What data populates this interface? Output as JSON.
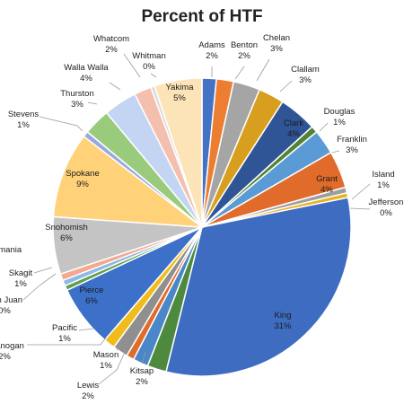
{
  "chart_data": {
    "type": "pie",
    "title": "Percent of HTF",
    "colors": {
      "blue": "#4472C4",
      "orange": "#ED7D31",
      "gray": "#A5A5A5",
      "gold": "#FFC000",
      "lightblue": "#5B9BD5",
      "green": "#70AD47",
      "darkblue": "#264478",
      "darkorange": "#9E480E",
      "darkgray": "#636363",
      "darkgold": "#997300",
      "steel": "#255E91",
      "darkgreen": "#43682B",
      "periwinkle": "#698ED0",
      "salmon": "#F1975A",
      "silver": "#B7B7B7",
      "yellow": "#FFCD33",
      "sky": "#7CAFDD",
      "lime": "#8CC168",
      "lavender": "#9DB5E0",
      "peach": "#F5BA8C",
      "beige": "#FDE9C9"
    },
    "slices": [
      {
        "name": "Adams",
        "label": "2%",
        "value": 1.5,
        "color": "#4472C4"
      },
      {
        "name": "Benton",
        "label": "2%",
        "value": 1.8,
        "color": "#ED7D31"
      },
      {
        "name": "Chelan",
        "label": "3%",
        "value": 2.8,
        "color": "#A5A5A5"
      },
      {
        "name": "Clallam",
        "label": "3%",
        "value": 2.7,
        "color": "#D89F1E"
      },
      {
        "name": "Clark",
        "label": "4%",
        "value": 4.0,
        "color": "#2F5597"
      },
      {
        "name": "Douglas",
        "label": "1%",
        "value": 0.7,
        "color": "#548235"
      },
      {
        "name": "Franklin",
        "label": "3%",
        "value": 2.6,
        "color": "#5B9BD5"
      },
      {
        "name": "Grant",
        "label": "4%",
        "value": 3.9,
        "color": "#E06B2A"
      },
      {
        "name": "Island",
        "label": "1%",
        "value": 0.6,
        "color": "#9E9E9E"
      },
      {
        "name": "Jefferson",
        "label": "0%",
        "value": 0.5,
        "color": "#E8B321"
      },
      {
        "name": "King",
        "label": "31%",
        "value": 31.0,
        "color": "#3E6CC0"
      },
      {
        "name": "Kitsap",
        "label": "2%",
        "value": 2.0,
        "color": "#4E8A3E"
      },
      {
        "name": "Lewis",
        "label": "2%",
        "value": 1.6,
        "color": "#4A86C8"
      },
      {
        "name": "Mason",
        "label": "1%",
        "value": 0.8,
        "color": "#E06B2A"
      },
      {
        "name": "Okanogan",
        "label": "2%",
        "value": 1.6,
        "color": "#8F8F8F"
      },
      {
        "name": "Pacific",
        "label": "1%",
        "value": 1.2,
        "color": "#F0BC1C"
      },
      {
        "name": "Pierce",
        "label": "6%",
        "value": 6.5,
        "color": "#3D70C8"
      },
      {
        "name": "San Juan",
        "label": "0%",
        "value": 0.5,
        "color": "#5EA04B"
      },
      {
        "name": "Skagit",
        "label": "1%",
        "value": 0.6,
        "color": "#8FB8E6"
      },
      {
        "name": "Skamania",
        "label": "",
        "value": 0.7,
        "color": "#F4A98E"
      },
      {
        "name": "Snohomish",
        "label": "6%",
        "value": 6.0,
        "color": "#C4C4C4"
      },
      {
        "name": "Spokane",
        "label": "9%",
        "value": 9.0,
        "color": "#FFD27A"
      },
      {
        "name": "Stevens",
        "label": "1%",
        "value": 0.6,
        "color": "#9AA8E0"
      },
      {
        "name": "Thurston",
        "label": "3%",
        "value": 2.8,
        "color": "#9ACB7D"
      },
      {
        "name": "Walla Walla",
        "label": "4%",
        "value": 3.5,
        "color": "#C3D5F2"
      },
      {
        "name": "Whatcom",
        "label": "2%",
        "value": 1.8,
        "color": "#F5BFB0"
      },
      {
        "name": "Whitman",
        "label": "0%",
        "value": 0.4,
        "color": "#DCDCDC"
      },
      {
        "name": "Yakima",
        "label": "5%",
        "value": 5.0,
        "color": "#FDE3B8"
      }
    ]
  }
}
